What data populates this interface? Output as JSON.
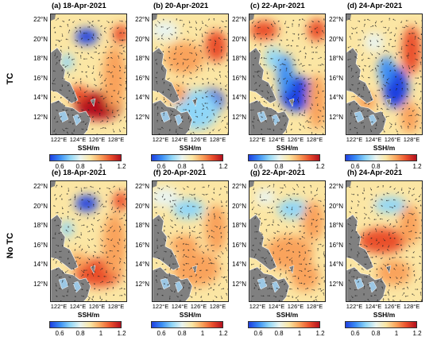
{
  "rows": [
    {
      "label": "TC"
    },
    {
      "label": "No TC"
    }
  ],
  "panels": [
    {
      "title": "(a) 18-Apr-2021",
      "pattern": "tc18"
    },
    {
      "title": "(b) 20-Apr-2021",
      "pattern": "tc20"
    },
    {
      "title": "(c) 22-Apr-2021",
      "pattern": "tc22"
    },
    {
      "title": "(d) 24-Apr-2021",
      "pattern": "tc24"
    },
    {
      "title": "(e) 18-Apr-2021",
      "pattern": "no18"
    },
    {
      "title": "(f) 20-Apr-2021",
      "pattern": "no20"
    },
    {
      "title": "(g) 22-Apr-2021",
      "pattern": "no22"
    },
    {
      "title": "(h) 24-Apr-2021",
      "pattern": "no24"
    }
  ],
  "lat_labels": [
    "22°N",
    "20°N",
    "18°N",
    "16°N",
    "14°N",
    "12°N"
  ],
  "lon_labels": [
    "122°E",
    "124°E",
    "126°E",
    "128°E"
  ],
  "colorbar": {
    "unit_label": "SSH/m",
    "ticks": [
      "0.6",
      "0.8",
      "1",
      "1.2"
    ],
    "range": [
      0.5,
      1.2
    ],
    "colors": [
      "#1f3fe0",
      "#3a8ef5",
      "#8fd6f8",
      "#e9f4f0",
      "#fbe6a4",
      "#f9a35b",
      "#ea4f2c",
      "#b3101e"
    ]
  },
  "land_color": "#808080",
  "coast_color": "#ffffff"
}
